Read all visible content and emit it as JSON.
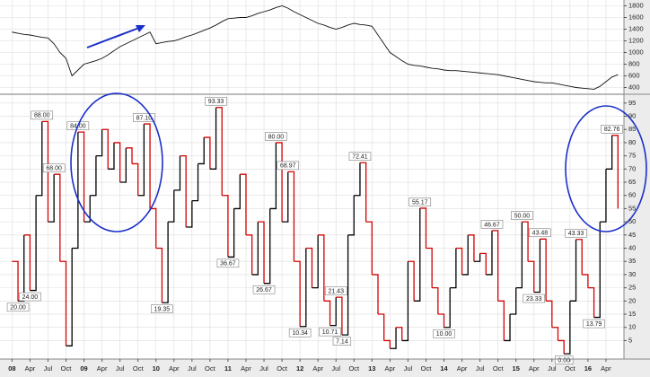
{
  "chart_data": [
    {
      "type": "line",
      "color": "#111111",
      "x": [
        "2008-01",
        "2008-02",
        "2008-03",
        "2008-04",
        "2008-05",
        "2008-06",
        "2008-07",
        "2008-08",
        "2008-09",
        "2008-10",
        "2008-11",
        "2008-12",
        "2009-01",
        "2009-02",
        "2009-03",
        "2009-04",
        "2009-05",
        "2009-06",
        "2009-07",
        "2009-08",
        "2009-09",
        "2009-10",
        "2009-11",
        "2009-12",
        "2010-01",
        "2010-02",
        "2010-03",
        "2010-04",
        "2010-05",
        "2010-06",
        "2010-07",
        "2010-08",
        "2010-09",
        "2010-10",
        "2010-11",
        "2010-12",
        "2011-01",
        "2011-02",
        "2011-03",
        "2011-04",
        "2011-05",
        "2011-06",
        "2011-07",
        "2011-08",
        "2011-09",
        "2011-10",
        "2011-11",
        "2011-12",
        "2012-01",
        "2012-02",
        "2012-03",
        "2012-04",
        "2012-05",
        "2012-06",
        "2012-07",
        "2012-08",
        "2012-09",
        "2012-10",
        "2012-11",
        "2012-12",
        "2013-01",
        "2013-02",
        "2013-03",
        "2013-04",
        "2013-05",
        "2013-06",
        "2013-07",
        "2013-08",
        "2013-09",
        "2013-10",
        "2013-11",
        "2013-12",
        "2014-01",
        "2014-02",
        "2014-03",
        "2014-04",
        "2014-05",
        "2014-06",
        "2014-07",
        "2014-08",
        "2014-09",
        "2014-10",
        "2014-11",
        "2014-12",
        "2015-01",
        "2015-02",
        "2015-03",
        "2015-04",
        "2015-05",
        "2015-06",
        "2015-07",
        "2015-08",
        "2015-09",
        "2015-10",
        "2015-11",
        "2015-12",
        "2016-01",
        "2016-02",
        "2016-03",
        "2016-04",
        "2016-05",
        "2016-06"
      ],
      "values": [
        1350,
        1330,
        1310,
        1300,
        1280,
        1260,
        1250,
        1150,
        1000,
        900,
        600,
        700,
        800,
        830,
        860,
        900,
        960,
        1030,
        1100,
        1150,
        1200,
        1250,
        1300,
        1350,
        1150,
        1170,
        1190,
        1200,
        1230,
        1270,
        1300,
        1340,
        1380,
        1420,
        1470,
        1530,
        1580,
        1590,
        1600,
        1600,
        1630,
        1670,
        1700,
        1730,
        1770,
        1800,
        1760,
        1700,
        1650,
        1600,
        1550,
        1500,
        1470,
        1430,
        1400,
        1430,
        1470,
        1500,
        1480,
        1470,
        1450,
        1300,
        1150,
        1000,
        930,
        860,
        800,
        780,
        770,
        750,
        730,
        720,
        700,
        690,
        690,
        680,
        670,
        660,
        650,
        640,
        630,
        620,
        600,
        580,
        560,
        540,
        520,
        500,
        490,
        480,
        480,
        460,
        440,
        420,
        400,
        390,
        380,
        370,
        420,
        500,
        580,
        620
      ],
      "xlim": [
        "2007-11",
        "2016-07"
      ],
      "ylim": [
        300,
        1900
      ],
      "yticks": [
        400,
        600,
        800,
        1000,
        1200,
        1400,
        1600,
        1800
      ],
      "grid": true
    },
    {
      "type": "step",
      "up_color": "#000000",
      "down_color": "#d40000",
      "x": [
        "2008-01",
        "2008-02",
        "2008-03",
        "2008-04",
        "2008-05",
        "2008-06",
        "2008-07",
        "2008-08",
        "2008-09",
        "2008-10",
        "2008-11",
        "2008-12",
        "2009-01",
        "2009-02",
        "2009-03",
        "2009-04",
        "2009-05",
        "2009-06",
        "2009-07",
        "2009-08",
        "2009-09",
        "2009-10",
        "2009-11",
        "2009-12",
        "2010-01",
        "2010-02",
        "2010-03",
        "2010-04",
        "2010-05",
        "2010-06",
        "2010-07",
        "2010-08",
        "2010-09",
        "2010-10",
        "2010-11",
        "2010-12",
        "2011-01",
        "2011-02",
        "2011-03",
        "2011-04",
        "2011-05",
        "2011-06",
        "2011-07",
        "2011-08",
        "2011-09",
        "2011-10",
        "2011-11",
        "2011-12",
        "2012-01",
        "2012-02",
        "2012-03",
        "2012-04",
        "2012-05",
        "2012-06",
        "2012-07",
        "2012-08",
        "2012-09",
        "2012-10",
        "2012-11",
        "2012-12",
        "2013-01",
        "2013-02",
        "2013-03",
        "2013-04",
        "2013-05",
        "2013-06",
        "2013-07",
        "2013-08",
        "2013-09",
        "2013-10",
        "2013-11",
        "2013-12",
        "2014-01",
        "2014-02",
        "2014-03",
        "2014-04",
        "2014-05",
        "2014-06",
        "2014-07",
        "2014-08",
        "2014-09",
        "2014-10",
        "2014-11",
        "2014-12",
        "2015-01",
        "2015-02",
        "2015-03",
        "2015-04",
        "2015-05",
        "2015-06",
        "2015-07",
        "2015-08",
        "2015-09",
        "2015-10",
        "2015-11",
        "2015-12",
        "2016-01",
        "2016-02",
        "2016-03",
        "2016-04",
        "2016-05",
        "2016-06"
      ],
      "values": [
        35,
        20,
        45,
        24,
        60,
        88,
        50,
        68,
        35,
        3,
        40,
        84,
        50,
        60,
        75,
        85,
        70,
        80,
        65,
        78,
        72,
        60,
        87.1,
        55,
        40,
        19.35,
        50,
        62,
        75,
        48,
        58,
        72,
        82,
        70,
        93.33,
        60,
        36.67,
        55,
        68,
        45,
        30,
        50,
        26.67,
        55,
        80,
        50,
        68.97,
        35,
        10.34,
        40,
        25,
        45,
        20,
        10.71,
        21.43,
        7.14,
        45,
        60,
        72.41,
        50,
        30,
        15,
        5,
        2,
        10,
        5,
        35,
        20,
        55.17,
        40,
        25,
        15,
        10,
        25,
        40,
        30,
        45,
        35,
        38,
        30,
        46.67,
        20,
        5,
        15,
        25,
        50,
        35,
        23.33,
        43.48,
        20,
        10,
        5,
        0,
        20,
        43.33,
        30,
        25,
        13.79,
        50,
        70,
        82.76,
        55
      ],
      "value_labels": [
        null,
        "20.00",
        null,
        "24.00",
        null,
        "88.00",
        null,
        "68.00",
        null,
        null,
        null,
        "84.00",
        null,
        null,
        null,
        null,
        null,
        null,
        null,
        null,
        null,
        null,
        "87.10",
        null,
        null,
        "19.35",
        null,
        null,
        null,
        null,
        null,
        null,
        null,
        null,
        "93.33",
        null,
        "36.67",
        null,
        null,
        null,
        null,
        null,
        "26.67",
        null,
        "80.00",
        null,
        "68.97",
        null,
        "10.34",
        null,
        null,
        null,
        null,
        "10.71",
        "21.43",
        "7.14",
        null,
        null,
        "72.41",
        null,
        null,
        null,
        null,
        null,
        null,
        null,
        null,
        null,
        "55.17",
        null,
        null,
        null,
        "10.00",
        null,
        null,
        null,
        null,
        null,
        null,
        null,
        "46.67",
        null,
        null,
        null,
        null,
        "50.00",
        null,
        "23.33",
        "43.48",
        null,
        null,
        null,
        "0.00",
        null,
        "43.33",
        null,
        null,
        "13.79",
        null,
        null,
        "82.76",
        null
      ],
      "xlim": [
        "2007-11",
        "2016-07"
      ],
      "xticks": [
        {
          "value": "2008-01",
          "label": "08"
        },
        {
          "value": "2008-04",
          "label": "Apr"
        },
        {
          "value": "2008-07",
          "label": "Jul"
        },
        {
          "value": "2008-10",
          "label": "Oct"
        },
        {
          "value": "2009-01",
          "label": "09"
        },
        {
          "value": "2009-04",
          "label": "Apr"
        },
        {
          "value": "2009-07",
          "label": "Jul"
        },
        {
          "value": "2009-10",
          "label": "Oct"
        },
        {
          "value": "2010-01",
          "label": "10"
        },
        {
          "value": "2010-04",
          "label": "Apr"
        },
        {
          "value": "2010-07",
          "label": "Jul"
        },
        {
          "value": "2010-10",
          "label": "Oct"
        },
        {
          "value": "2011-01",
          "label": "11"
        },
        {
          "value": "2011-04",
          "label": "Apr"
        },
        {
          "value": "2011-07",
          "label": "Jul"
        },
        {
          "value": "2011-10",
          "label": "Oct"
        },
        {
          "value": "2012-01",
          "label": "12"
        },
        {
          "value": "2012-04",
          "label": "Apr"
        },
        {
          "value": "2012-07",
          "label": "Jul"
        },
        {
          "value": "2012-10",
          "label": "Oct"
        },
        {
          "value": "2013-01",
          "label": "13"
        },
        {
          "value": "2013-04",
          "label": "Apr"
        },
        {
          "value": "2013-07",
          "label": "Jul"
        },
        {
          "value": "2013-10",
          "label": "Oct"
        },
        {
          "value": "2014-01",
          "label": "14"
        },
        {
          "value": "2014-04",
          "label": "Apr"
        },
        {
          "value": "2014-07",
          "label": "Jul"
        },
        {
          "value": "2014-10",
          "label": "Oct"
        },
        {
          "value": "2015-01",
          "label": "15"
        },
        {
          "value": "2015-04",
          "label": "Apr"
        },
        {
          "value": "2015-07",
          "label": "Jul"
        },
        {
          "value": "2015-10",
          "label": "Oct"
        },
        {
          "value": "2016-01",
          "label": "16"
        },
        {
          "value": "2016-04",
          "label": "Apr"
        }
      ],
      "ylim": [
        -2,
        98
      ],
      "yticks": [
        5,
        10,
        15,
        20,
        25,
        30,
        35,
        40,
        45,
        50,
        55,
        60,
        65,
        70,
        75,
        80,
        85,
        90,
        95
      ],
      "grid": true
    }
  ]
}
